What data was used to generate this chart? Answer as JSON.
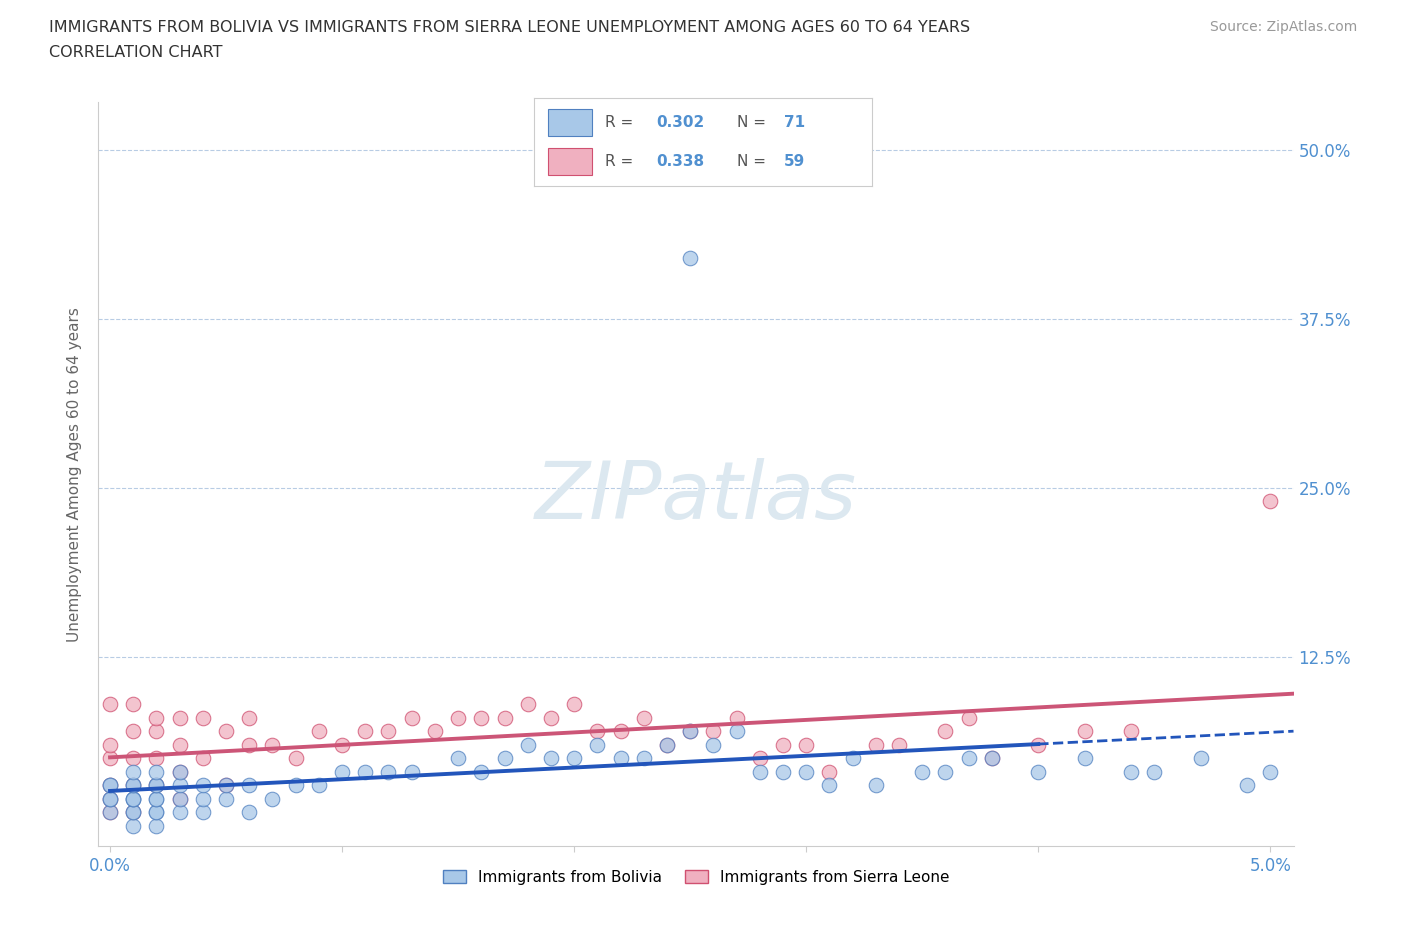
{
  "title_line1": "IMMIGRANTS FROM BOLIVIA VS IMMIGRANTS FROM SIERRA LEONE UNEMPLOYMENT AMONG AGES 60 TO 64 YEARS",
  "title_line2": "CORRELATION CHART",
  "source_text": "Source: ZipAtlas.com",
  "ylabel": "Unemployment Among Ages 60 to 64 years",
  "xlim": [
    -0.0005,
    0.051
  ],
  "ylim": [
    -0.015,
    0.535
  ],
  "bolivia_color": "#a8c8e8",
  "sierra_leone_color": "#f0b0c0",
  "bolivia_edge": "#5080c0",
  "sierra_leone_edge": "#d05070",
  "regression_bolivia_color": "#2255bb",
  "regression_sierra_leone_color": "#cc5577",
  "R_bolivia": "0.302",
  "N_bolivia": "71",
  "R_sierra_leone": "0.338",
  "N_sierra_leone": "59",
  "background_color": "#ffffff",
  "grid_color": "#b8cce4",
  "tick_color": "#5090d0",
  "watermark_color": "#dce8f0",
  "bolivia_x": [
    0.0,
    0.0,
    0.0,
    0.0,
    0.0,
    0.001,
    0.001,
    0.001,
    0.001,
    0.001,
    0.001,
    0.001,
    0.001,
    0.001,
    0.002,
    0.002,
    0.002,
    0.002,
    0.002,
    0.002,
    0.002,
    0.002,
    0.003,
    0.003,
    0.003,
    0.003,
    0.004,
    0.004,
    0.004,
    0.005,
    0.005,
    0.006,
    0.006,
    0.007,
    0.008,
    0.009,
    0.01,
    0.011,
    0.012,
    0.013,
    0.015,
    0.016,
    0.017,
    0.018,
    0.019,
    0.02,
    0.021,
    0.022,
    0.023,
    0.024,
    0.025,
    0.026,
    0.027,
    0.028,
    0.029,
    0.03,
    0.031,
    0.032,
    0.033,
    0.035,
    0.036,
    0.037,
    0.038,
    0.04,
    0.042,
    0.044,
    0.045,
    0.047,
    0.049,
    0.05,
    0.025
  ],
  "bolivia_y": [
    0.01,
    0.02,
    0.02,
    0.03,
    0.03,
    0.0,
    0.01,
    0.01,
    0.02,
    0.02,
    0.02,
    0.03,
    0.03,
    0.04,
    0.0,
    0.01,
    0.01,
    0.02,
    0.02,
    0.03,
    0.03,
    0.04,
    0.01,
    0.02,
    0.03,
    0.04,
    0.01,
    0.02,
    0.03,
    0.02,
    0.03,
    0.01,
    0.03,
    0.02,
    0.03,
    0.03,
    0.04,
    0.04,
    0.04,
    0.04,
    0.05,
    0.04,
    0.05,
    0.06,
    0.05,
    0.05,
    0.06,
    0.05,
    0.05,
    0.06,
    0.07,
    0.06,
    0.07,
    0.04,
    0.04,
    0.04,
    0.03,
    0.05,
    0.03,
    0.04,
    0.04,
    0.05,
    0.05,
    0.04,
    0.05,
    0.04,
    0.04,
    0.05,
    0.03,
    0.04,
    0.42
  ],
  "sierra_leone_x": [
    0.0,
    0.0,
    0.0,
    0.0,
    0.0,
    0.0,
    0.001,
    0.001,
    0.001,
    0.001,
    0.001,
    0.002,
    0.002,
    0.002,
    0.002,
    0.003,
    0.003,
    0.003,
    0.003,
    0.004,
    0.004,
    0.005,
    0.005,
    0.006,
    0.006,
    0.007,
    0.008,
    0.009,
    0.01,
    0.011,
    0.012,
    0.013,
    0.014,
    0.015,
    0.016,
    0.017,
    0.018,
    0.019,
    0.02,
    0.021,
    0.022,
    0.023,
    0.024,
    0.025,
    0.026,
    0.027,
    0.028,
    0.029,
    0.03,
    0.031,
    0.033,
    0.034,
    0.036,
    0.037,
    0.038,
    0.04,
    0.042,
    0.044,
    0.05
  ],
  "sierra_leone_y": [
    0.01,
    0.02,
    0.03,
    0.05,
    0.06,
    0.09,
    0.01,
    0.03,
    0.05,
    0.07,
    0.09,
    0.03,
    0.05,
    0.07,
    0.08,
    0.02,
    0.04,
    0.06,
    0.08,
    0.05,
    0.08,
    0.03,
    0.07,
    0.06,
    0.08,
    0.06,
    0.05,
    0.07,
    0.06,
    0.07,
    0.07,
    0.08,
    0.07,
    0.08,
    0.08,
    0.08,
    0.09,
    0.08,
    0.09,
    0.07,
    0.07,
    0.08,
    0.06,
    0.07,
    0.07,
    0.08,
    0.05,
    0.06,
    0.06,
    0.04,
    0.06,
    0.06,
    0.07,
    0.08,
    0.05,
    0.06,
    0.07,
    0.07,
    0.24
  ],
  "legend_R_color": "#5090d0",
  "legend_N_color": "#5090d0"
}
